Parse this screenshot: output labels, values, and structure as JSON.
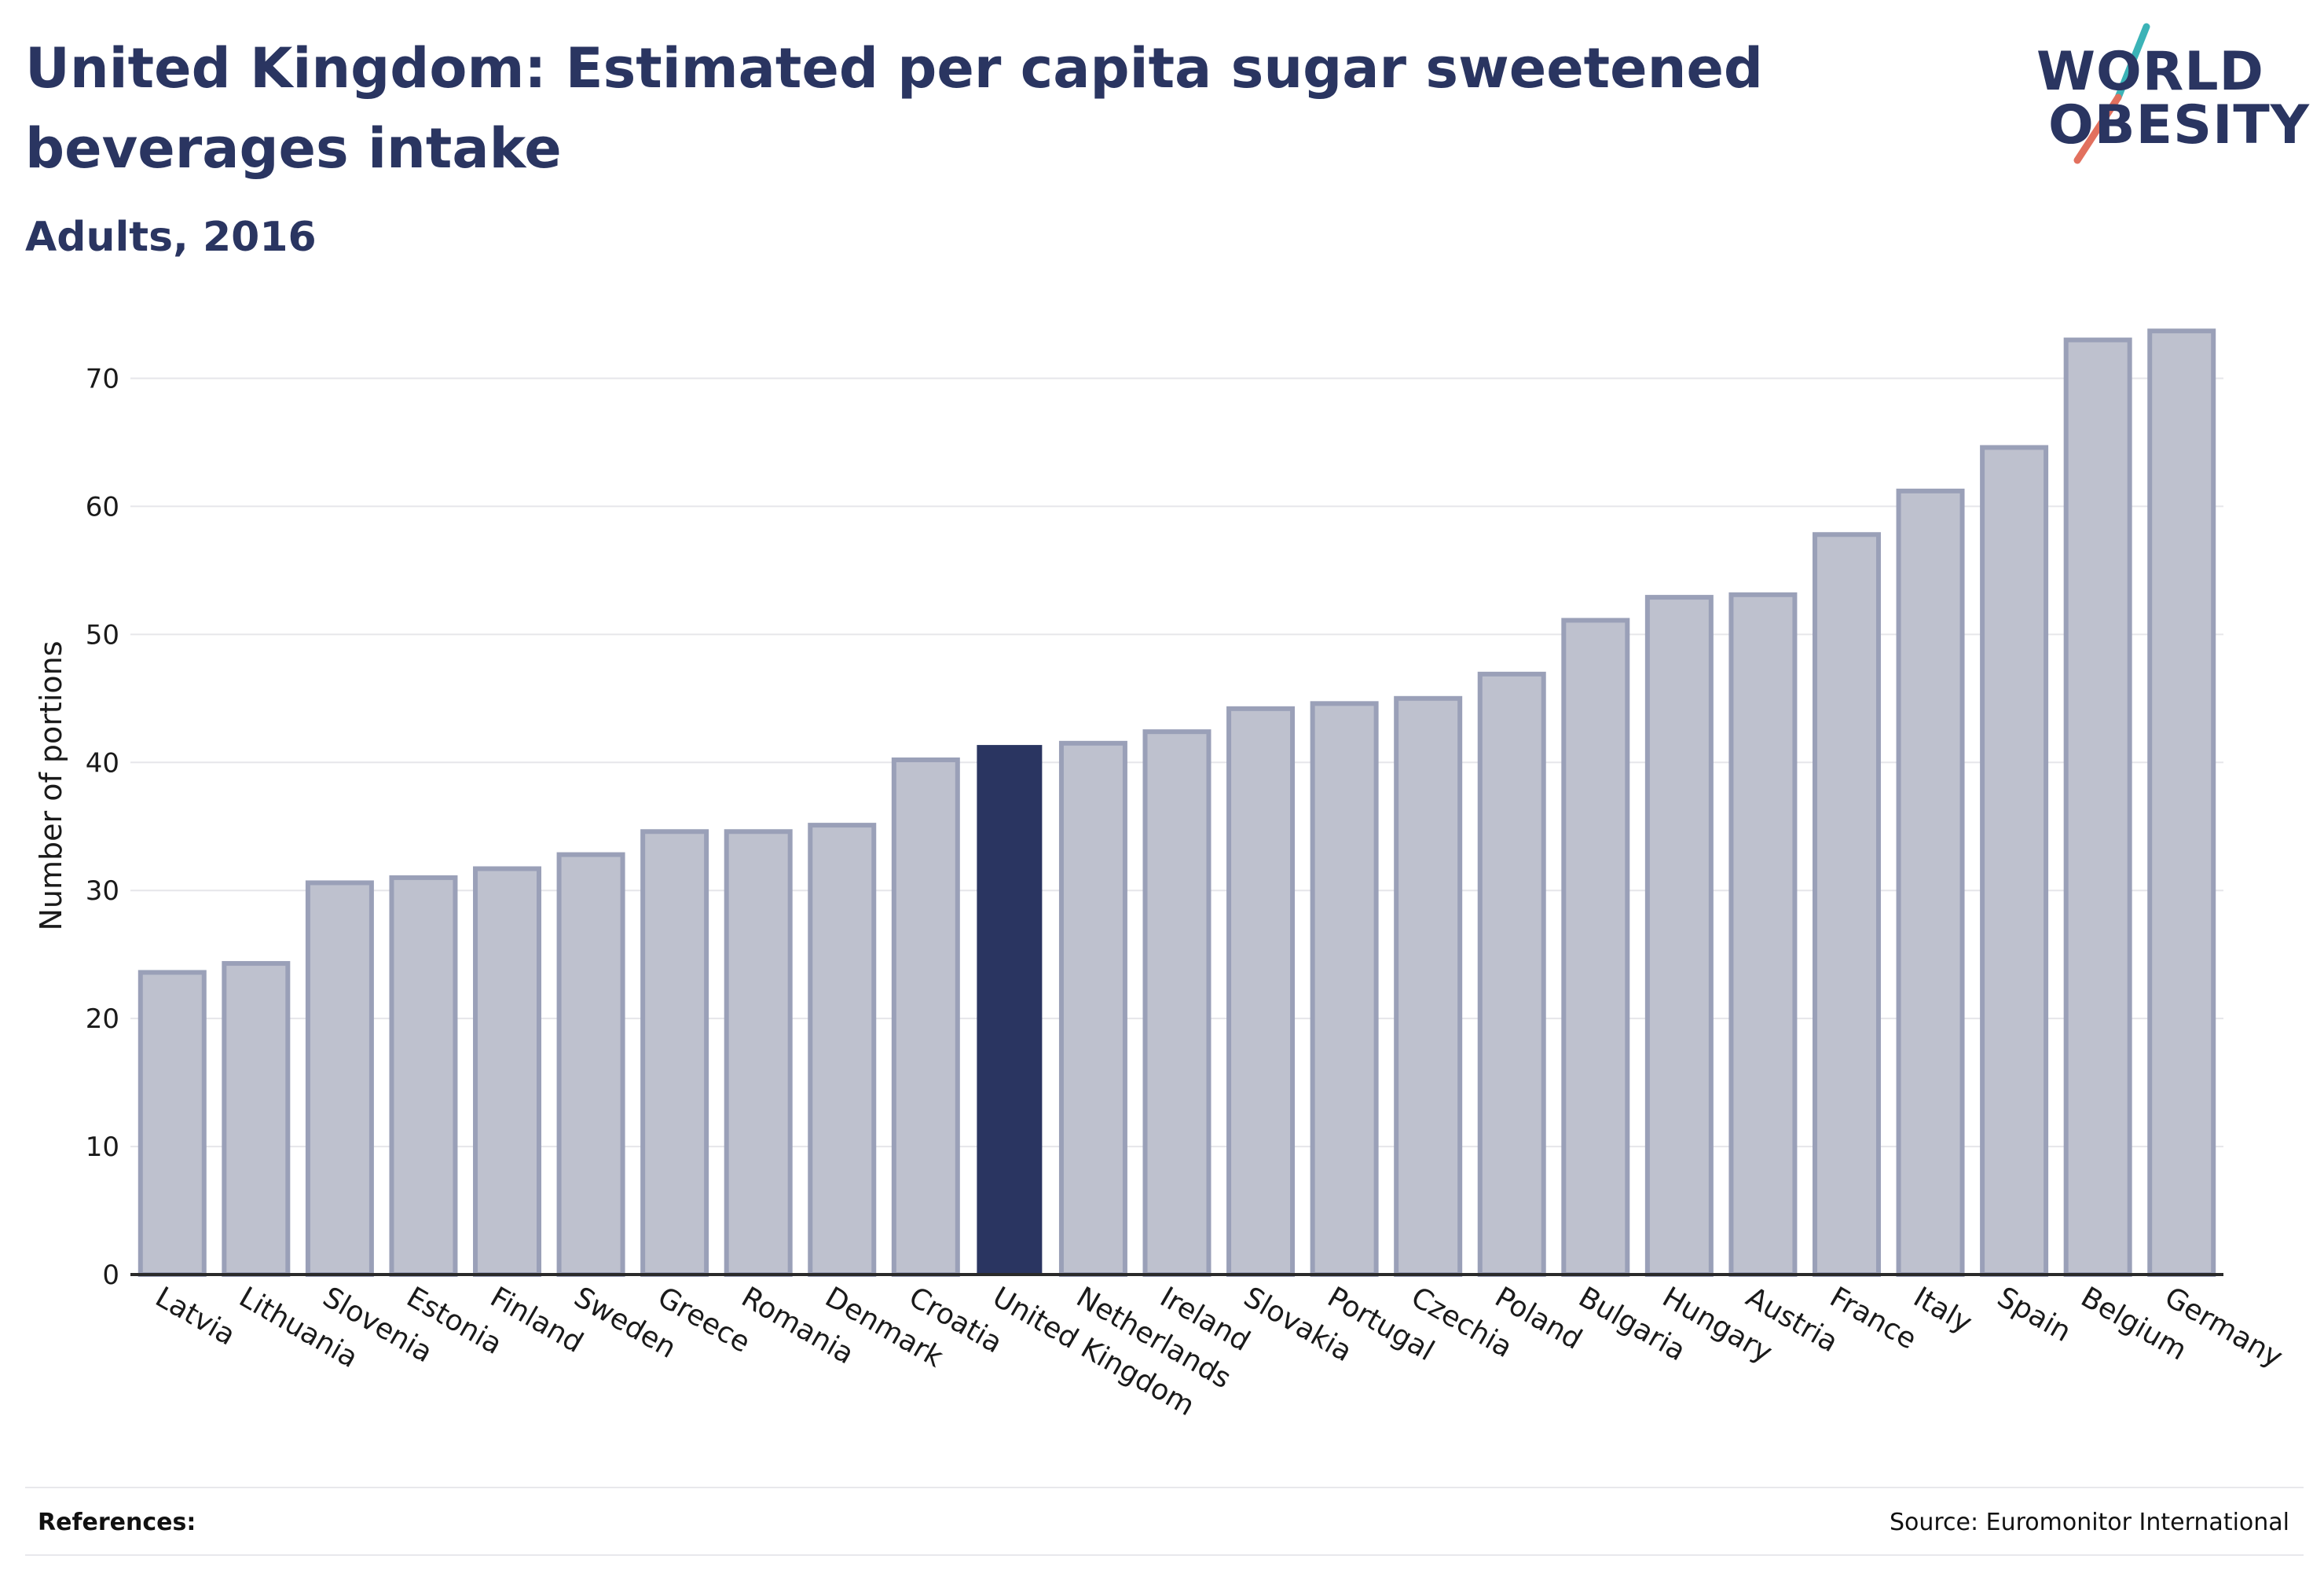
{
  "header": {
    "title": "United Kingdom: Estimated per capita sugar sweetened beverages intake",
    "subtitle": "Adults, 2016"
  },
  "logo": {
    "line1": "WORLD",
    "line2": "OBESITY",
    "slash_top_color": "#3bb3b7",
    "slash_bottom_color": "#e2705e"
  },
  "footer": {
    "references_label": "References:",
    "source": "Source: Euromonitor International"
  },
  "colors": {
    "bar_fill": "#bec1ce",
    "bar_stroke": "#9aa0b8",
    "highlight_fill": "#2a3561",
    "axis": "#2a2a2a",
    "grid": "#e6e6ea",
    "text": "#1a1a1a"
  },
  "chart_data": {
    "type": "bar",
    "title": "United Kingdom: Estimated per capita sugar sweetened beverages intake",
    "subtitle": "Adults, 2016",
    "ylabel": "Number of portions",
    "xlabel": "",
    "ylim": [
      0,
      75
    ],
    "yticks": [
      0,
      10,
      20,
      30,
      40,
      50,
      60,
      70
    ],
    "grid": true,
    "highlight": "United Kingdom",
    "categories": [
      "Latvia",
      "Lithuania",
      "Slovenia",
      "Estonia",
      "Finland",
      "Sweden",
      "Greece",
      "Romania",
      "Denmark",
      "Croatia",
      "United Kingdom",
      "Netherlands",
      "Ireland",
      "Slovakia",
      "Portugal",
      "Czechia",
      "Poland",
      "Bulgaria",
      "Hungary",
      "Austria",
      "France",
      "Italy",
      "Spain",
      "Belgium",
      "Germany"
    ],
    "values": [
      23.6,
      24.3,
      30.6,
      31.0,
      31.7,
      32.8,
      34.6,
      34.6,
      35.1,
      40.2,
      41.3,
      41.5,
      42.4,
      44.2,
      44.6,
      45.0,
      46.9,
      51.1,
      52.9,
      53.1,
      57.8,
      61.2,
      64.6,
      73.0,
      73.7
    ]
  }
}
